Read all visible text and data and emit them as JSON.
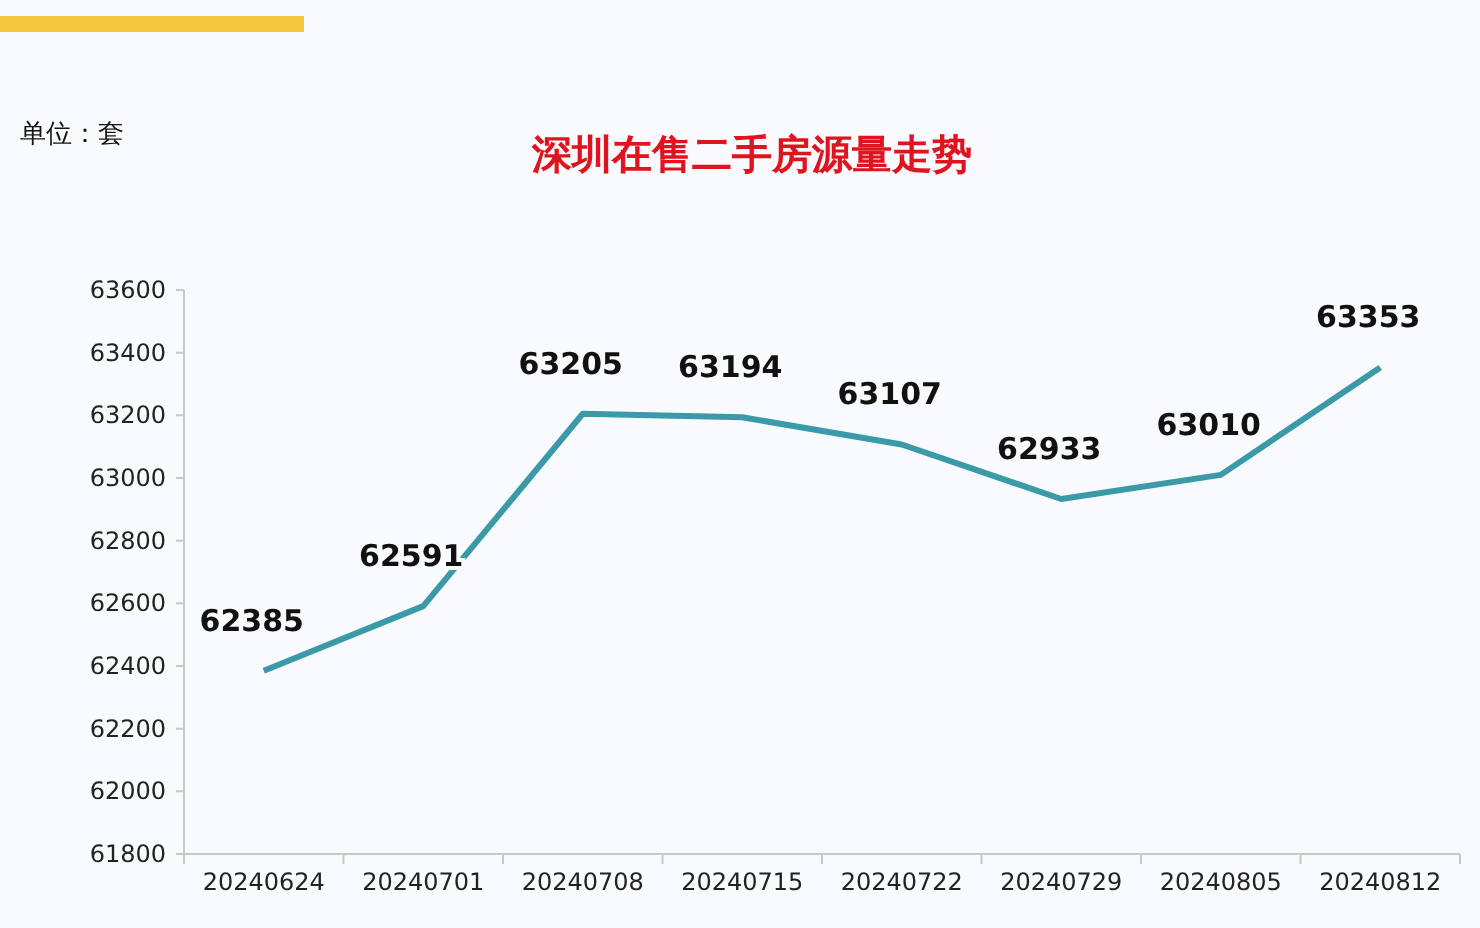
{
  "chart_data": {
    "type": "line",
    "title": "深圳在售二手房源量走势",
    "annotations": [
      "单位：套"
    ],
    "categories": [
      "20240624",
      "20240701",
      "20240708",
      "20240715",
      "20240722",
      "20240729",
      "20240805",
      "20240812"
    ],
    "values": [
      62385,
      62591,
      63205,
      63194,
      63107,
      62933,
      63010,
      63353
    ],
    "color": "#3a9aa8",
    "ylim": [
      61800,
      63600
    ],
    "yticks": [
      61800,
      62000,
      62200,
      62400,
      62600,
      62800,
      63000,
      63200,
      63400,
      63600
    ],
    "data_labels": true,
    "grid": false,
    "marker": "none",
    "line_style": "solid"
  }
}
